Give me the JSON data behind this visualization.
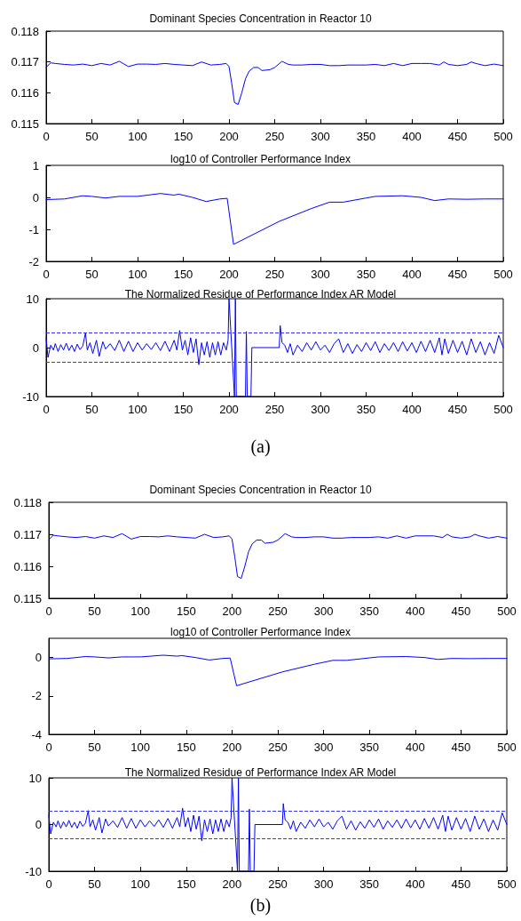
{
  "chart_data": [
    {
      "type": "line",
      "title": "Dominant Species Concentration in Reactor 10",
      "xlim": [
        0,
        500
      ],
      "xticks": [
        0,
        50,
        100,
        150,
        200,
        250,
        300,
        350,
        400,
        450,
        500
      ],
      "ylim": [
        0.115,
        0.118
      ],
      "yticks": [
        0.115,
        0.116,
        0.117,
        0.118
      ],
      "line_style": "solid",
      "marker": "none",
      "series": [
        {
          "color": "#0000ff",
          "x": [
            0,
            5,
            10,
            20,
            30,
            40,
            50,
            60,
            70,
            80,
            90,
            100,
            110,
            120,
            130,
            140,
            150,
            160,
            170,
            180,
            190,
            197,
            200,
            203,
            206,
            210,
            214,
            218,
            222,
            227,
            232,
            236,
            245,
            250,
            258,
            265,
            270,
            280,
            290,
            300,
            310,
            320,
            330,
            340,
            350,
            360,
            370,
            380,
            390,
            400,
            410,
            420,
            430,
            435,
            440,
            450,
            460,
            465,
            470,
            480,
            490,
            500
          ],
          "values": [
            0.11683,
            0.11697,
            0.11695,
            0.11692,
            0.1169,
            0.11693,
            0.11688,
            0.11695,
            0.1169,
            0.11702,
            0.11685,
            0.11693,
            0.11693,
            0.11692,
            0.11695,
            0.11692,
            0.1169,
            0.11688,
            0.117,
            0.1169,
            0.11692,
            0.11695,
            0.11685,
            0.1163,
            0.11568,
            0.11562,
            0.116,
            0.11645,
            0.1167,
            0.11682,
            0.11682,
            0.11672,
            0.11675,
            0.11682,
            0.11702,
            0.11692,
            0.1169,
            0.1169,
            0.11692,
            0.11692,
            0.11688,
            0.11688,
            0.1169,
            0.1169,
            0.1169,
            0.11692,
            0.11688,
            0.11695,
            0.11688,
            0.11695,
            0.11695,
            0.11695,
            0.1169,
            0.117,
            0.11692,
            0.11688,
            0.11692,
            0.117,
            0.11695,
            0.11688,
            0.11693,
            0.11688
          ]
        }
      ]
    },
    {
      "type": "line",
      "title": "log10 of Controller Performance Index",
      "xlim": [
        0,
        500
      ],
      "xticks": [
        0,
        50,
        100,
        150,
        200,
        250,
        300,
        350,
        400,
        450,
        500
      ],
      "ylim": [
        -2,
        1
      ],
      "yticks": [
        -2,
        -1,
        0,
        1
      ],
      "line_style": "solid",
      "marker": "none",
      "series": [
        {
          "color": "#0000ff",
          "x": [
            0,
            20,
            40,
            50,
            65,
            80,
            100,
            125,
            140,
            145,
            160,
            175,
            190,
            198,
            205,
            255,
            290,
            310,
            325,
            350,
            360,
            390,
            410,
            425,
            440,
            460,
            480,
            500
          ],
          "values": [
            -0.07,
            -0.05,
            0.05,
            0.03,
            -0.02,
            0.03,
            0.03,
            0.12,
            0.07,
            0.1,
            0,
            -0.13,
            -0.05,
            -0.03,
            -1.47,
            -0.75,
            -0.35,
            -0.15,
            -0.15,
            -0.02,
            0.03,
            0.05,
            0,
            -0.1,
            -0.05,
            -0.06,
            -0.05,
            -0.05
          ]
        }
      ]
    },
    {
      "type": "line",
      "title": "The Normalized Residue of Performance Index AR Model",
      "xlim": [
        0,
        500
      ],
      "xticks": [
        0,
        50,
        100,
        150,
        200,
        250,
        300,
        350,
        400,
        450,
        500
      ],
      "ylim": [
        -10,
        10
      ],
      "yticks": [
        -10,
        0,
        10
      ],
      "line_style": "solid",
      "marker": "none",
      "ref_lines": [
        {
          "axis": "y",
          "value": 3,
          "color": "#3333ff",
          "line_style": "dashed"
        },
        {
          "axis": "y",
          "value": -3,
          "color": "#3333ff",
          "line_style": "dashed"
        }
      ],
      "annotations": [
        "(a)"
      ],
      "series": [
        {
          "color": "#0000ff",
          "x": [
            0,
            2,
            5,
            8,
            10,
            13,
            16,
            19,
            22,
            25,
            28,
            31,
            34,
            37,
            40,
            43,
            45,
            48,
            51,
            55,
            58,
            62,
            65,
            70,
            75,
            80,
            85,
            90,
            95,
            100,
            105,
            110,
            115,
            120,
            125,
            130,
            135,
            140,
            143,
            146,
            149,
            152,
            155,
            158,
            161,
            164,
            167,
            170,
            173,
            176,
            179,
            182,
            185,
            188,
            191,
            194,
            197,
            199,
            200,
            206,
            207,
            208,
            218,
            219,
            220,
            224,
            225,
            255,
            256,
            258,
            261,
            264,
            267,
            270,
            275,
            280,
            285,
            290,
            295,
            300,
            305,
            310,
            315,
            320,
            325,
            330,
            335,
            340,
            345,
            350,
            355,
            360,
            365,
            370,
            375,
            380,
            385,
            390,
            395,
            400,
            405,
            410,
            415,
            420,
            425,
            430,
            433,
            436,
            440,
            445,
            450,
            455,
            460,
            465,
            470,
            475,
            480,
            485,
            490,
            495,
            500
          ],
          "values": [
            2,
            -2,
            0.5,
            -0.5,
            0.8,
            -0.8,
            0.6,
            -0.5,
            0.9,
            -0.6,
            0.5,
            -0.8,
            0.7,
            -0.4,
            0.3,
            3,
            -0.5,
            1,
            -1.2,
            1.5,
            -1.8,
            1.2,
            -0.3,
            0.8,
            -0.6,
            1.5,
            -0.8,
            1.3,
            -0.8,
            1,
            -0.5,
            0.8,
            -0.4,
            1,
            -0.6,
            1.3,
            -0.8,
            1.5,
            -0.5,
            3.5,
            -0.5,
            1.5,
            -1.5,
            2,
            -1,
            1.8,
            -3.5,
            1,
            -1.5,
            1.2,
            -2,
            1,
            -1.5,
            1.2,
            -1.5,
            1,
            -0.5,
            1.5,
            10,
            -10,
            10,
            -10,
            -10,
            3.3,
            -10,
            -10,
            0,
            0,
            4.5,
            1,
            0.5,
            -1,
            0.8,
            -1.5,
            0.5,
            -0.8,
            1,
            -0.5,
            1.2,
            -0.5,
            0.5,
            -1,
            0.8,
            1.8,
            -1,
            0.8,
            -1.2,
            0.6,
            -0.8,
            1,
            -0.6,
            1.2,
            -1,
            0.8,
            -0.6,
            1,
            -0.8,
            1.2,
            -0.7,
            1,
            -1,
            1.3,
            -0.8,
            1.5,
            -1,
            2,
            -1.5,
            1.8,
            -1.2,
            1.5,
            -1,
            1.3,
            -1.5,
            1.8,
            -1,
            1.2,
            -1.5,
            1,
            -1.2,
            2.5,
            0
          ]
        }
      ]
    },
    {
      "type": "line",
      "title": "Dominant Species Concentration in Reactor 10",
      "xlim": [
        0,
        500
      ],
      "xticks": [
        0,
        50,
        100,
        150,
        200,
        250,
        300,
        350,
        400,
        450,
        500
      ],
      "ylim": [
        0.115,
        0.118
      ],
      "yticks": [
        0.115,
        0.116,
        0.117,
        0.118
      ],
      "line_style": "solid",
      "marker": "none",
      "series": [
        {
          "color": "#0000ff",
          "x": [
            0,
            5,
            10,
            20,
            30,
            40,
            50,
            60,
            70,
            80,
            90,
            100,
            110,
            120,
            130,
            140,
            150,
            160,
            170,
            180,
            190,
            197,
            200,
            203,
            206,
            210,
            214,
            218,
            222,
            227,
            232,
            236,
            245,
            250,
            258,
            265,
            270,
            280,
            290,
            300,
            310,
            320,
            330,
            340,
            350,
            360,
            370,
            380,
            390,
            400,
            410,
            420,
            430,
            435,
            440,
            450,
            460,
            465,
            470,
            480,
            490,
            500
          ],
          "values": [
            0.11683,
            0.11697,
            0.11695,
            0.11692,
            0.1169,
            0.11693,
            0.11688,
            0.11695,
            0.1169,
            0.11702,
            0.11685,
            0.11693,
            0.11693,
            0.11692,
            0.11695,
            0.11692,
            0.1169,
            0.11688,
            0.117,
            0.1169,
            0.11692,
            0.11695,
            0.11685,
            0.1163,
            0.11568,
            0.11562,
            0.116,
            0.11645,
            0.1167,
            0.11682,
            0.11682,
            0.11672,
            0.11675,
            0.11682,
            0.11702,
            0.11692,
            0.1169,
            0.1169,
            0.11692,
            0.11692,
            0.11688,
            0.11688,
            0.1169,
            0.1169,
            0.1169,
            0.11692,
            0.11688,
            0.11695,
            0.11688,
            0.11695,
            0.11695,
            0.11695,
            0.1169,
            0.117,
            0.11692,
            0.11688,
            0.11692,
            0.117,
            0.11695,
            0.11688,
            0.11693,
            0.11688
          ]
        }
      ]
    },
    {
      "type": "line",
      "title": "log10 of Controller Performance Index",
      "xlim": [
        0,
        500
      ],
      "xticks": [
        0,
        50,
        100,
        150,
        200,
        250,
        300,
        350,
        400,
        450,
        500
      ],
      "ylim": [
        -4,
        1
      ],
      "yticks": [
        -4,
        -2,
        0
      ],
      "line_style": "solid",
      "marker": "none",
      "series": [
        {
          "color": "#0000ff",
          "x": [
            0,
            20,
            40,
            50,
            65,
            80,
            100,
            125,
            140,
            145,
            160,
            175,
            190,
            198,
            205,
            255,
            290,
            310,
            325,
            350,
            360,
            390,
            410,
            425,
            440,
            460,
            480,
            500
          ],
          "values": [
            -0.07,
            -0.05,
            0.05,
            0.03,
            -0.02,
            0.03,
            0.03,
            0.12,
            0.07,
            0.1,
            0,
            -0.13,
            -0.05,
            -0.03,
            -1.47,
            -0.75,
            -0.35,
            -0.15,
            -0.15,
            -0.02,
            0.03,
            0.05,
            0,
            -0.1,
            -0.05,
            -0.06,
            -0.05,
            -0.05
          ]
        }
      ]
    },
    {
      "type": "line",
      "title": "The Normalized Residue of Performance Index AR Model",
      "xlim": [
        0,
        500
      ],
      "xticks": [
        0,
        50,
        100,
        150,
        200,
        250,
        300,
        350,
        400,
        450,
        500
      ],
      "ylim": [
        -10,
        10
      ],
      "yticks": [
        -10,
        0,
        10
      ],
      "line_style": "solid",
      "marker": "none",
      "ref_lines": [
        {
          "axis": "y",
          "value": 3,
          "color": "#3333ff",
          "line_style": "dashed"
        },
        {
          "axis": "y",
          "value": -3,
          "color": "#3333ff",
          "line_style": "dashed"
        }
      ],
      "annotations": [
        "(b)"
      ],
      "series": [
        {
          "color": "#0000ff",
          "x": [
            0,
            2,
            5,
            8,
            10,
            13,
            16,
            19,
            22,
            25,
            28,
            31,
            34,
            37,
            40,
            43,
            45,
            48,
            51,
            55,
            58,
            62,
            65,
            70,
            75,
            80,
            85,
            90,
            95,
            100,
            105,
            110,
            115,
            120,
            125,
            130,
            135,
            140,
            143,
            146,
            149,
            152,
            155,
            158,
            161,
            164,
            167,
            170,
            173,
            176,
            179,
            182,
            185,
            188,
            191,
            194,
            197,
            199,
            200,
            206,
            207,
            208,
            218,
            219,
            220,
            224,
            225,
            255,
            256,
            258,
            261,
            264,
            267,
            270,
            275,
            280,
            285,
            290,
            295,
            300,
            305,
            310,
            315,
            320,
            325,
            330,
            335,
            340,
            345,
            350,
            355,
            360,
            365,
            370,
            375,
            380,
            385,
            390,
            395,
            400,
            405,
            410,
            415,
            420,
            425,
            430,
            433,
            436,
            440,
            445,
            450,
            455,
            460,
            465,
            470,
            475,
            480,
            485,
            490,
            495,
            500
          ],
          "values": [
            2,
            -2,
            0.5,
            -0.5,
            0.8,
            -0.8,
            0.6,
            -0.5,
            0.9,
            -0.6,
            0.5,
            -0.8,
            0.7,
            -0.4,
            0.3,
            3,
            -0.5,
            1,
            -1.2,
            1.5,
            -1.8,
            1.2,
            -0.3,
            0.8,
            -0.6,
            1.5,
            -0.8,
            1.3,
            -0.8,
            1,
            -0.5,
            0.8,
            -0.4,
            1,
            -0.6,
            1.3,
            -0.8,
            1.5,
            -0.5,
            3.5,
            -0.5,
            1.5,
            -1.5,
            2,
            -1,
            1.8,
            -3.5,
            1,
            -1.5,
            1.2,
            -2,
            1,
            -1.5,
            1.2,
            -1.5,
            1,
            -0.5,
            1.5,
            10,
            -10,
            10,
            -10,
            -10,
            3.3,
            -10,
            -10,
            0,
            0,
            4.5,
            1,
            0.5,
            -1,
            0.8,
            -1.5,
            0.5,
            -0.8,
            1,
            -0.5,
            1.2,
            -0.5,
            0.5,
            -1,
            0.8,
            1.8,
            -1,
            0.8,
            -1.2,
            0.6,
            -0.8,
            1,
            -0.6,
            1.2,
            -1,
            0.8,
            -0.6,
            1,
            -0.8,
            1.2,
            -0.7,
            1,
            -1,
            1.3,
            -0.8,
            1.5,
            -1,
            2,
            -1.5,
            1.8,
            -1.2,
            1.5,
            -1,
            1.3,
            -1.5,
            1.8,
            -1,
            1.2,
            -1.5,
            1,
            -1.2,
            2.5,
            0
          ]
        }
      ]
    }
  ]
}
